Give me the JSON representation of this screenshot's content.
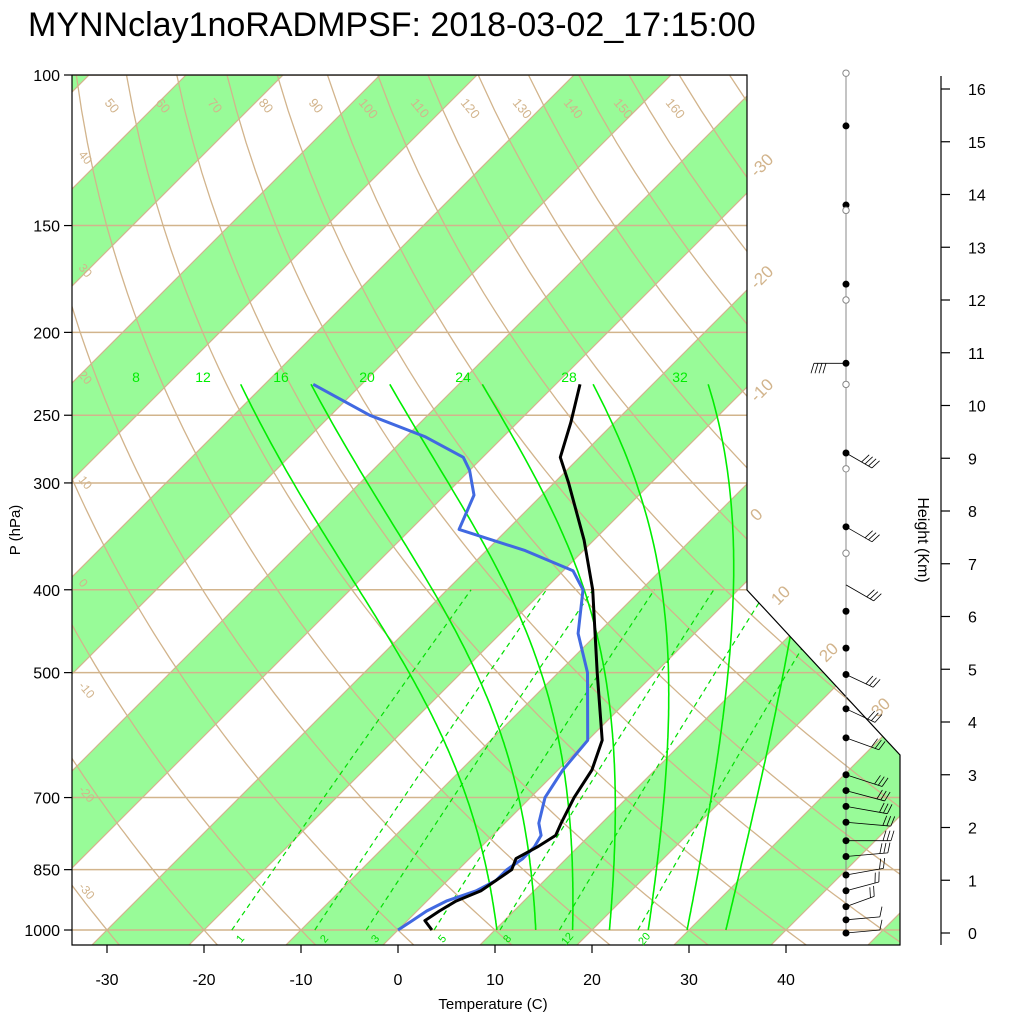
{
  "title": "MYNNclay1noRADMPSF: 2018-03-02_17:15:00",
  "colors": {
    "dry_adiabat": "#d2b48c",
    "moist_adiabat": "#00ee00",
    "mixing_ratio": "#00dd00",
    "band_fill": "#98fb98",
    "temperature": "#000000",
    "dewpoint": "#4169e1",
    "frame": "#000000"
  },
  "chart_data": {
    "type": "skew-t",
    "xlabel": "Temperature (C)",
    "ylabel": "P (hPa)",
    "y2label": "Height (Km)",
    "xlim": [
      -33,
      52
    ],
    "ylim_hpa": [
      1050,
      100
    ],
    "x_ticks": [
      "-30",
      "-20",
      "-10",
      "0",
      "10",
      "20",
      "30",
      "40"
    ],
    "pressure_ticks": [
      "100",
      "150",
      "200",
      "250",
      "300",
      "400",
      "500",
      "700",
      "850",
      "1000"
    ],
    "height_ticks": [
      "0",
      "1",
      "2",
      "3",
      "4",
      "5",
      "6",
      "7",
      "8",
      "9",
      "10",
      "11",
      "12",
      "13",
      "14",
      "15",
      "16"
    ],
    "isotherm_labels": [
      "-30",
      "-20",
      "-10",
      "0",
      "10",
      "20",
      "30"
    ],
    "dry_adiabat_labels": [
      "50",
      "60",
      "70",
      "80",
      "90",
      "100",
      "110",
      "120",
      "130",
      "140",
      "150",
      "160"
    ],
    "left_edge_labels": [
      "40",
      "30",
      "20",
      "10",
      "0",
      "-10",
      "-20",
      "-30"
    ],
    "moist_adiabat_labels": [
      "8",
      "12",
      "16",
      "20",
      "24",
      "28",
      "32"
    ],
    "mixing_ratio_labels": [
      "1",
      "2",
      "3",
      "5",
      "8",
      "12",
      "20"
    ],
    "temperature_profile": [
      {
        "p": 1000,
        "t": 3.5
      },
      {
        "p": 975,
        "t": 1.8
      },
      {
        "p": 950,
        "t": 2.3
      },
      {
        "p": 925,
        "t": 3.0
      },
      {
        "p": 900,
        "t": 4.5
      },
      {
        "p": 875,
        "t": 5.0
      },
      {
        "p": 850,
        "t": 5.5
      },
      {
        "p": 825,
        "t": 4.8
      },
      {
        "p": 800,
        "t": 5.8
      },
      {
        "p": 775,
        "t": 6.5
      },
      {
        "p": 750,
        "t": 5.8
      },
      {
        "p": 700,
        "t": 4.5
      },
      {
        "p": 650,
        "t": 3.5
      },
      {
        "p": 600,
        "t": 1.5
      },
      {
        "p": 500,
        "t": -6.0
      },
      {
        "p": 400,
        "t": -15.0
      },
      {
        "p": 350,
        "t": -21.0
      },
      {
        "p": 300,
        "t": -28.5
      },
      {
        "p": 280,
        "t": -32.0
      },
      {
        "p": 255,
        "t": -34.5
      },
      {
        "p": 230,
        "t": -37.5
      }
    ],
    "dewpoint_profile": [
      {
        "p": 1000,
        "t": 0.0
      },
      {
        "p": 975,
        "t": 0.5
      },
      {
        "p": 950,
        "t": 1.0
      },
      {
        "p": 925,
        "t": 2.0
      },
      {
        "p": 900,
        "t": 4.0
      },
      {
        "p": 875,
        "t": 5.0
      },
      {
        "p": 850,
        "t": 5.0
      },
      {
        "p": 825,
        "t": 5.5
      },
      {
        "p": 800,
        "t": 5.5
      },
      {
        "p": 775,
        "t": 5.0
      },
      {
        "p": 750,
        "t": 3.5
      },
      {
        "p": 700,
        "t": 1.5
      },
      {
        "p": 650,
        "t": 0.5
      },
      {
        "p": 600,
        "t": 0.0
      },
      {
        "p": 500,
        "t": -7.0
      },
      {
        "p": 450,
        "t": -12.0
      },
      {
        "p": 400,
        "t": -16.0
      },
      {
        "p": 380,
        "t": -19.0
      },
      {
        "p": 360,
        "t": -26.0
      },
      {
        "p": 340,
        "t": -35.0
      },
      {
        "p": 310,
        "t": -37.0
      },
      {
        "p": 290,
        "t": -40.0
      },
      {
        "p": 280,
        "t": -42.0
      },
      {
        "p": 265,
        "t": -48.0
      },
      {
        "p": 250,
        "t": -56.0
      },
      {
        "p": 230,
        "t": -65.0
      }
    ],
    "height_dots_km": [
      0.0,
      0.25,
      0.5,
      0.8,
      1.1,
      1.45,
      1.75,
      2.1,
      2.4,
      2.7,
      3.0,
      3.7,
      4.25,
      4.9,
      5.4,
      6.1,
      7.7,
      9.1,
      10.8,
      12.3,
      13.8,
      15.3
    ],
    "height_open_dots_km": [
      7.2,
      8.8,
      10.4,
      12.0,
      13.7,
      16.3
    ]
  }
}
